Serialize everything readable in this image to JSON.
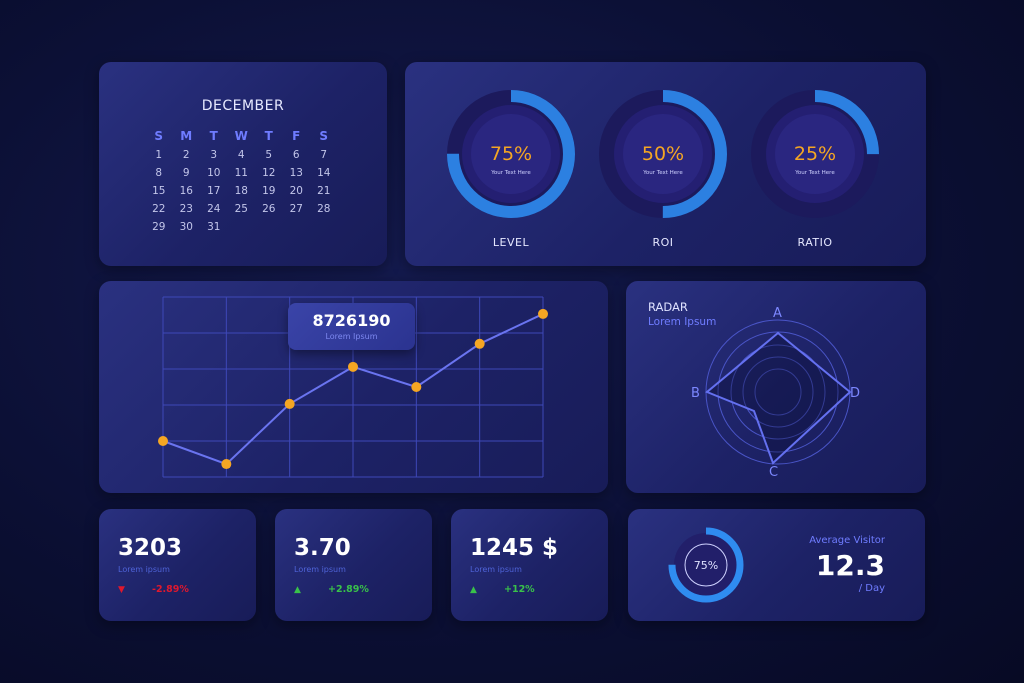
{
  "calendar": {
    "month": "DECEMBER",
    "weekdays": [
      "S",
      "M",
      "T",
      "W",
      "T",
      "F",
      "S"
    ],
    "weeks": [
      [
        "1",
        "2",
        "3",
        "4",
        "5",
        "6",
        "7"
      ],
      [
        "8",
        "9",
        "10",
        "11",
        "12",
        "13",
        "14"
      ],
      [
        "15",
        "16",
        "17",
        "18",
        "19",
        "20",
        "21"
      ],
      [
        "22",
        "23",
        "24",
        "25",
        "26",
        "27",
        "28"
      ],
      [
        "29",
        "30",
        "31",
        "",
        "",
        "",
        ""
      ]
    ]
  },
  "gauges": [
    {
      "value": "75%",
      "fraction": 0.75,
      "caption": "Your Text Here",
      "label": "LEVEL"
    },
    {
      "value": "50%",
      "fraction": 0.5,
      "caption": "Your Text Here",
      "label": "ROI"
    },
    {
      "value": "25%",
      "fraction": 0.25,
      "caption": "Your Text Here",
      "label": "RATIO"
    }
  ],
  "line_chart": {
    "tooltip_value": "8726190",
    "tooltip_caption": "Lorem Ipsum",
    "points": [
      1.0,
      0.36,
      2.03,
      3.06,
      2.5,
      3.7,
      4.53
    ],
    "ylim": [
      0,
      5
    ],
    "grid": true,
    "highlight_index": 3,
    "line_color": "#6a74f0",
    "point_color": "#f5a623"
  },
  "radar": {
    "title": "RADAR",
    "subtitle": "Lorem Ipsum",
    "axes": [
      "A",
      "B",
      "C",
      "D"
    ]
  },
  "stats": [
    {
      "value": "3203",
      "caption": "Lorem ipsum",
      "trend": "down",
      "change": "-2.89%",
      "color": "#e0182d"
    },
    {
      "value": "3.70",
      "caption": "Lorem ipsum",
      "trend": "up",
      "change": "+2.89%",
      "color": "#39c24a"
    },
    {
      "value": "1245 $",
      "caption": "Lorem ipsum",
      "trend": "up",
      "change": "+12%",
      "color": "#39c24a"
    }
  ],
  "visitor": {
    "ring_value": "75%",
    "fraction": 0.75,
    "label": "Average Visitor",
    "value": "12.3",
    "unit": "/ Day"
  },
  "colors": {
    "accent": "#2f8cf0",
    "orange": "#f5a623",
    "blue_text": "#6f7cff"
  }
}
